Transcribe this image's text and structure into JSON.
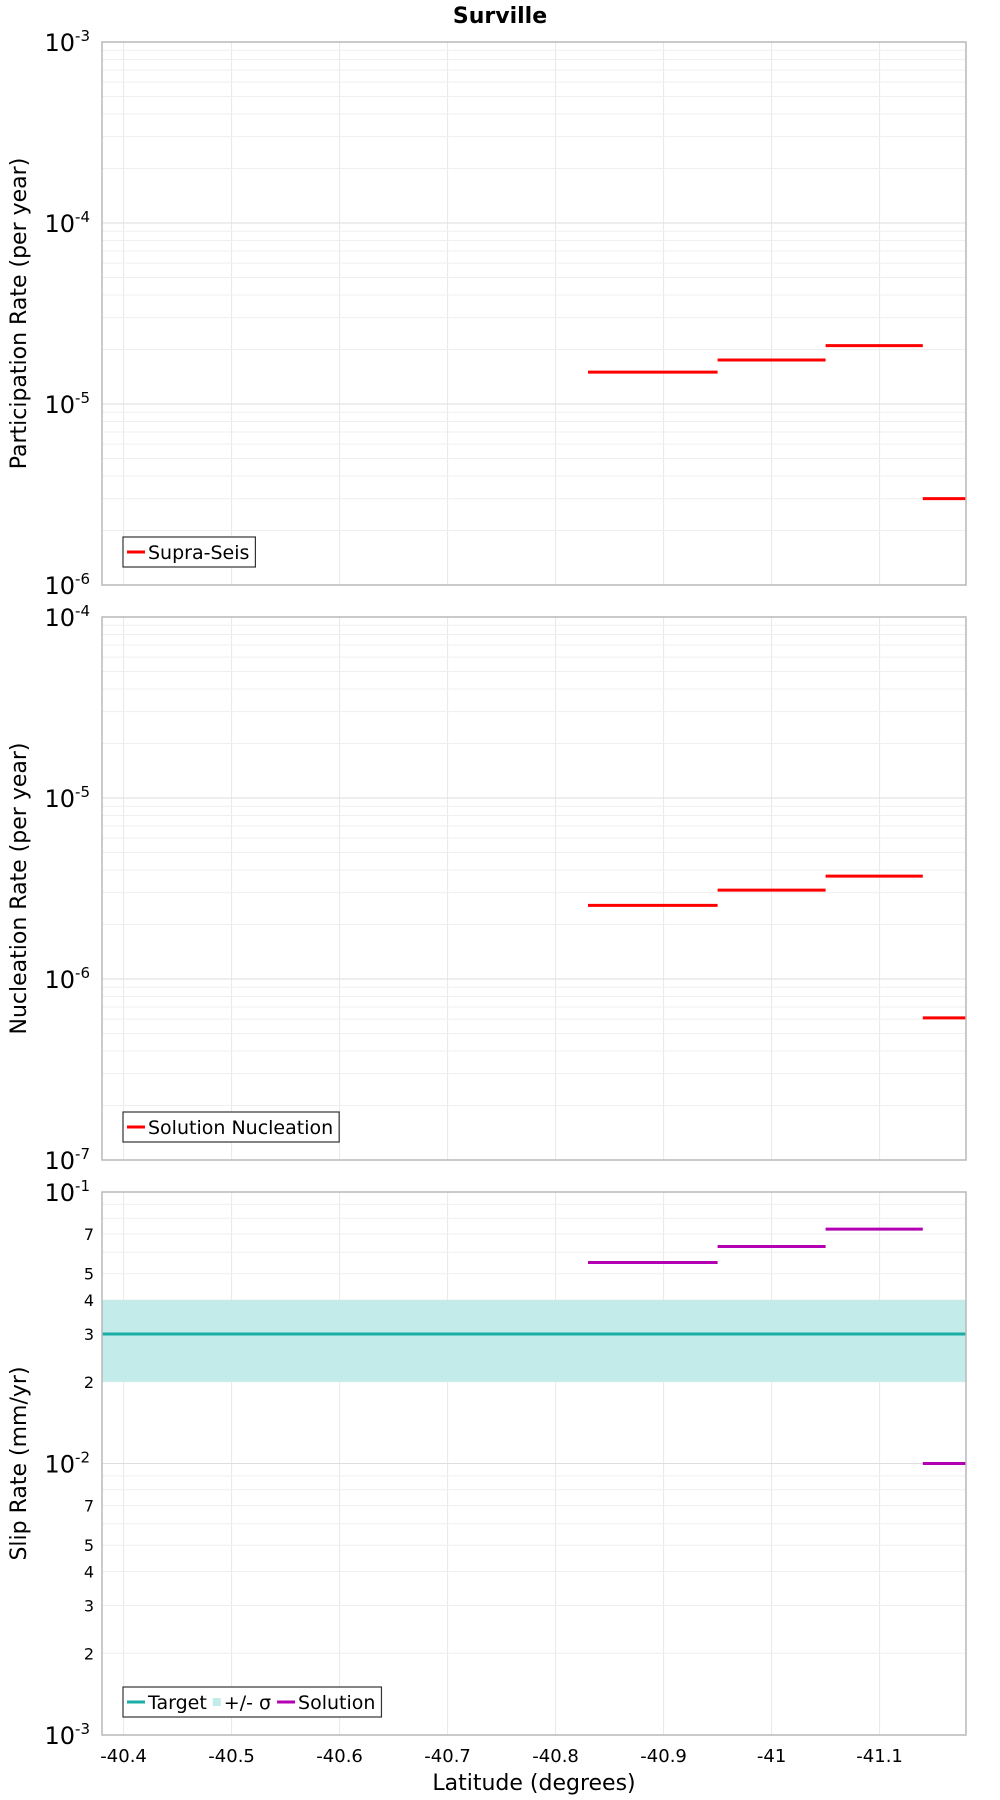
{
  "chart_data": [
    {
      "type": "line",
      "title": "Surville",
      "ylabel": "Participation Rate (per year)",
      "yscale": "log",
      "ylim": [
        1e-06,
        0.001
      ],
      "xlim": [
        -40.38,
        -41.18
      ],
      "grid": true,
      "legend_position": "bottom-left",
      "series": [
        {
          "name": "Supra-Seis",
          "color": "#ff0000",
          "segments": [
            {
              "x": [
                -40.83,
                -40.95
              ],
              "y": 1.5e-05
            },
            {
              "x": [
                -40.95,
                -41.05
              ],
              "y": 1.75e-05
            },
            {
              "x": [
                -41.05,
                -41.14
              ],
              "y": 2.1e-05
            },
            {
              "x": [
                -41.14,
                -41.18
              ],
              "y": 3e-06
            }
          ]
        }
      ]
    },
    {
      "type": "line",
      "ylabel": "Nucleation Rate (per year)",
      "yscale": "log",
      "ylim": [
        1e-07,
        0.0001
      ],
      "xlim": [
        -40.38,
        -41.18
      ],
      "grid": true,
      "legend_position": "bottom-left",
      "series": [
        {
          "name": "Solution Nucleation",
          "color": "#ff0000",
          "segments": [
            {
              "x": [
                -40.83,
                -40.95
              ],
              "y": 2.55e-06
            },
            {
              "x": [
                -40.95,
                -41.05
              ],
              "y": 3.1e-06
            },
            {
              "x": [
                -41.05,
                -41.14
              ],
              "y": 3.7e-06
            },
            {
              "x": [
                -41.14,
                -41.18
              ],
              "y": 6.1e-07
            }
          ]
        }
      ]
    },
    {
      "type": "line",
      "ylabel": "Slip Rate (mm/yr)",
      "xlabel": "Latitude (degrees)",
      "yscale": "log",
      "ylim": [
        0.001,
        0.1
      ],
      "xlim": [
        -40.38,
        -41.18
      ],
      "xticks": [
        "-40.4",
        "-40.5",
        "-40.6",
        "-40.7",
        "-40.8",
        "-40.9",
        "-41",
        "-41.1"
      ],
      "grid": true,
      "legend_position": "bottom-left",
      "series": [
        {
          "name": "Target",
          "color": "#1aada5",
          "segments": [
            {
              "x": [
                -40.38,
                -41.18
              ],
              "y": 0.03
            }
          ]
        },
        {
          "name": "+/- σ",
          "color": "#c2ebe9",
          "band": [
            0.02,
            0.04
          ]
        },
        {
          "name": "Solution",
          "color": "#b300b3",
          "segments": [
            {
              "x": [
                -40.83,
                -40.95
              ],
              "y": 0.055
            },
            {
              "x": [
                -40.95,
                -41.05
              ],
              "y": 0.063
            },
            {
              "x": [
                -41.05,
                -41.14
              ],
              "y": 0.073
            },
            {
              "x": [
                -41.14,
                -41.18
              ],
              "y": 0.01
            }
          ]
        }
      ]
    }
  ]
}
